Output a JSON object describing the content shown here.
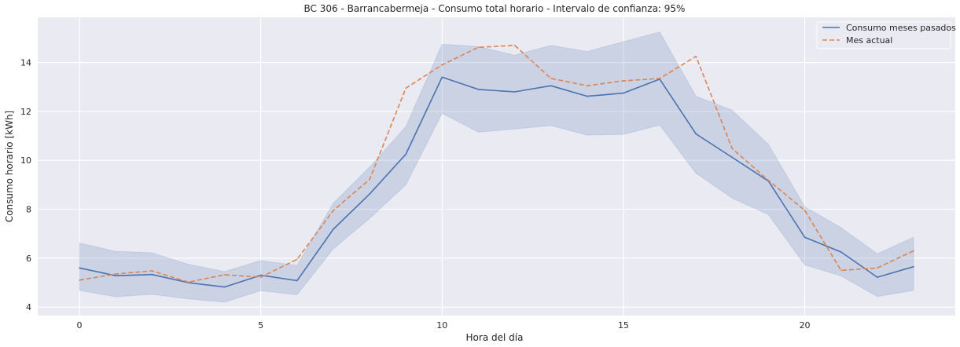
{
  "chart_data": {
    "type": "line",
    "title": "BC 306 - Barrancabermeja - Consumo total horario - Intervalo de confianza: 95%",
    "xlabel": "Hora del día",
    "ylabel": "Consumo horario [kWh]",
    "xlim": [
      -1.15,
      24.15
    ],
    "ylim": [
      3.65,
      15.85
    ],
    "xticks": [
      0,
      5,
      10,
      15,
      20
    ],
    "yticks": [
      4,
      6,
      8,
      10,
      12,
      14
    ],
    "grid": true,
    "legend_position": "top-right",
    "x": [
      0,
      1,
      2,
      3,
      4,
      5,
      6,
      7,
      8,
      9,
      10,
      11,
      12,
      13,
      14,
      15,
      16,
      17,
      18,
      19,
      20,
      21,
      22,
      23
    ],
    "series": [
      {
        "name": "Consumo meses pasados",
        "style": "solid",
        "color": "#4c72b0",
        "values": [
          5.6,
          5.28,
          5.33,
          5.0,
          4.82,
          5.3,
          5.08,
          7.18,
          8.62,
          10.25,
          13.4,
          12.9,
          12.8,
          13.05,
          12.62,
          12.75,
          13.32,
          11.08,
          10.12,
          9.15,
          6.85,
          6.25,
          5.22,
          5.65
        ],
        "ci_lower": [
          4.68,
          4.42,
          4.52,
          4.33,
          4.2,
          4.67,
          4.5,
          6.38,
          7.62,
          9.0,
          11.92,
          11.15,
          11.28,
          11.42,
          11.03,
          11.06,
          11.44,
          9.47,
          8.45,
          7.78,
          5.72,
          5.27,
          4.43,
          4.68
        ],
        "ci_upper": [
          6.62,
          6.28,
          6.22,
          5.75,
          5.45,
          5.9,
          5.7,
          8.25,
          9.72,
          11.38,
          14.75,
          14.65,
          14.3,
          14.7,
          14.45,
          14.85,
          15.25,
          12.62,
          12.05,
          10.65,
          8.1,
          7.25,
          6.18,
          6.85
        ]
      },
      {
        "name": "Mes actual",
        "style": "dashed",
        "color": "#dd8452",
        "values": [
          5.1,
          5.35,
          5.48,
          5.02,
          5.32,
          5.22,
          5.95,
          7.95,
          9.22,
          12.95,
          13.9,
          14.62,
          14.7,
          13.35,
          13.05,
          13.25,
          13.35,
          14.25,
          10.48,
          9.18,
          7.95,
          5.5,
          5.6,
          6.3
        ]
      }
    ]
  },
  "colors": {
    "plot_background": "#eaeaf2",
    "grid": "#ffffff",
    "ci_fill": "#4c72b0"
  }
}
